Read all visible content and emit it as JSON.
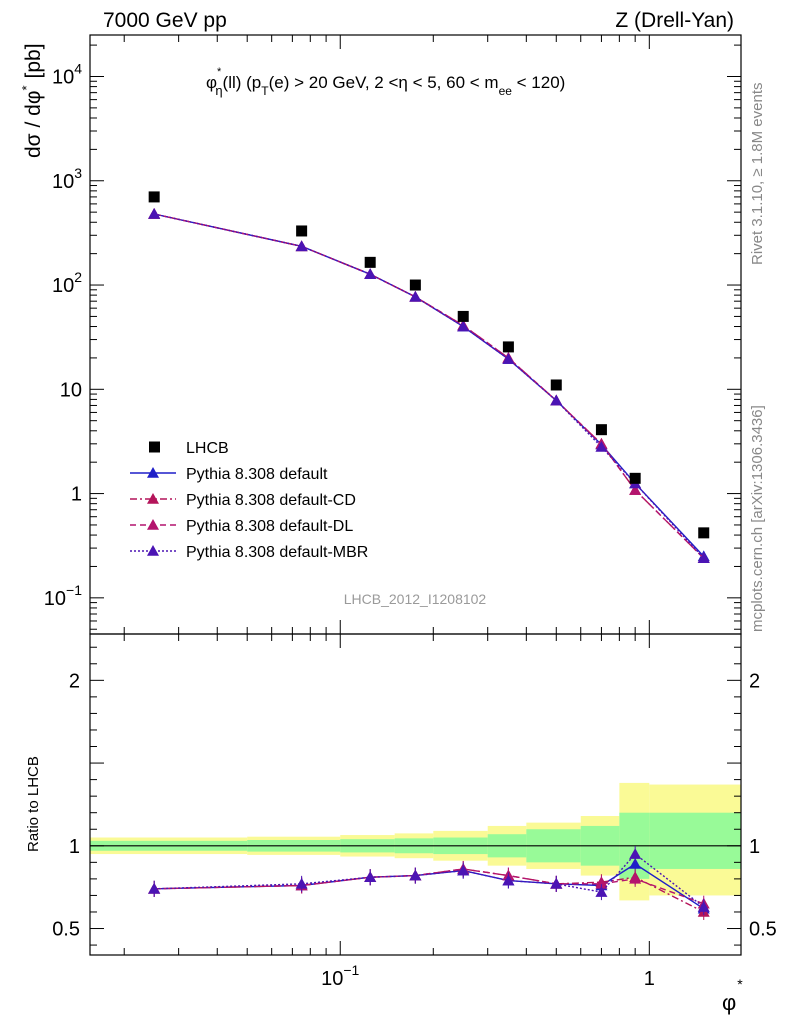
{
  "header": {
    "energy_label": "7000 GeV pp",
    "process_label": "Z (Drell-Yan)",
    "analysis_id": "LHCB_2012_I1208102",
    "side_label_top": "Rivet 3.1.10, ≥ 1.8M events",
    "side_label_bottom": "mcplots.cern.ch [arXiv:1306.3436]"
  },
  "colors": {
    "data": "#000000",
    "default": "#1f1fc8",
    "default_cd": "#b4145a",
    "default_dl": "#b4146e",
    "default_mbr": "#4b14b4",
    "band_inner": "#98fa98",
    "band_outer": "#fafa96"
  },
  "chart_data": [
    {
      "type": "scatter",
      "panel": "main",
      "title": "φ*η(ll) (pT(e) > 20 GeV, 2 <η < 5, 60 < mee < 120)",
      "title_parts": {
        "phi": "φ",
        "star": "*",
        "eta_sub": "η",
        "ll": "(ll) (p",
        "T_sub": "T",
        "rest1": "(e) > 20 GeV, 2 <η < 5, 60 < m",
        "ee_sub": "ee",
        "rest2": " < 120)"
      },
      "ylabel": "dσ / dφ* [pb]",
      "ylabel_parts": {
        "main": "dσ / dφ",
        "star": "*",
        "unit": "[pb]"
      },
      "xscale": "log",
      "yscale": "log",
      "xlim": [
        0.0155,
        1.98
      ],
      "ylim": [
        0.045,
        25000
      ],
      "yticks": [
        {
          "value": 0.1,
          "base": "10",
          "exp": "−1"
        },
        {
          "value": 1,
          "base": "1",
          "exp": ""
        },
        {
          "value": 10,
          "base": "10",
          "exp": ""
        },
        {
          "value": 100,
          "base": "10",
          "exp": "2"
        },
        {
          "value": 1000,
          "base": "10",
          "exp": "3"
        },
        {
          "value": 10000,
          "base": "10",
          "exp": "4"
        }
      ],
      "x": [
        0.025,
        0.075,
        0.125,
        0.175,
        0.25,
        0.35,
        0.5,
        0.7,
        0.9,
        1.5
      ],
      "data": {
        "name": "LHCB",
        "y": [
          700,
          330,
          165,
          100,
          50,
          25.5,
          11,
          4.1,
          1.4,
          0.42
        ]
      },
      "series": [
        {
          "name": "Pythia 8.308 default",
          "style": "solid",
          "color_key": "default",
          "y": [
            480,
            235,
            127,
            77,
            40,
            19.5,
            7.8,
            2.95,
            1.25,
            0.25
          ]
        },
        {
          "name": "Pythia 8.308 default-CD",
          "style": "dashdot",
          "color_key": "default_cd",
          "y": [
            480,
            235,
            127,
            77,
            41,
            20,
            7.8,
            3.0,
            1.08,
            0.24
          ]
        },
        {
          "name": "Pythia 8.308 default-DL",
          "style": "dashed",
          "color_key": "default_dl",
          "y": [
            480,
            235,
            127,
            77,
            41,
            20,
            7.8,
            3.0,
            1.08,
            0.24
          ]
        },
        {
          "name": "Pythia 8.308 default-MBR",
          "style": "dotted",
          "color_key": "default_mbr",
          "y": [
            480,
            235,
            127,
            77,
            40,
            19.5,
            7.8,
            2.8,
            1.25,
            0.24
          ]
        }
      ],
      "legend_position": "lower-left"
    },
    {
      "type": "line",
      "panel": "ratio",
      "ylabel": "Ratio to LHCB",
      "xlabel": "φ*",
      "xlabel_parts": {
        "main": "φ",
        "star": "*"
      },
      "xscale": "log",
      "xlim": [
        0.0155,
        1.98
      ],
      "ylim": [
        0.34,
        2.28
      ],
      "yticks": [
        0.5,
        1,
        2
      ],
      "ytick_labels": [
        "0.5",
        "1",
        "2"
      ],
      "xticks": [
        {
          "value": 0.1,
          "base": "10",
          "exp": "−1"
        },
        {
          "value": 1,
          "base": "1",
          "exp": ""
        }
      ],
      "band_edges": [
        0.0155,
        0.05,
        0.1,
        0.15,
        0.2,
        0.3,
        0.4,
        0.6,
        0.8,
        1.0,
        1.98
      ],
      "band_inner": [
        [
          0.97,
          1.03
        ],
        [
          0.965,
          1.035
        ],
        [
          0.96,
          1.04
        ],
        [
          0.955,
          1.045
        ],
        [
          0.95,
          1.05
        ],
        [
          0.93,
          1.07
        ],
        [
          0.9,
          1.1
        ],
        [
          0.88,
          1.12
        ],
        [
          0.8,
          1.2
        ],
        [
          0.86,
          1.2
        ]
      ],
      "band_outer": [
        [
          0.95,
          1.05
        ],
        [
          0.945,
          1.055
        ],
        [
          0.935,
          1.065
        ],
        [
          0.925,
          1.075
        ],
        [
          0.91,
          1.09
        ],
        [
          0.88,
          1.12
        ],
        [
          0.86,
          1.14
        ],
        [
          0.82,
          1.18
        ],
        [
          0.67,
          1.38
        ],
        [
          0.7,
          1.37
        ]
      ],
      "x": [
        0.025,
        0.075,
        0.125,
        0.175,
        0.25,
        0.35,
        0.5,
        0.7,
        0.9,
        1.5
      ],
      "series": [
        {
          "name": "Pythia 8.308 default",
          "style": "solid",
          "color_key": "default",
          "y": [
            0.74,
            0.76,
            0.81,
            0.82,
            0.85,
            0.79,
            0.77,
            0.76,
            0.89,
            0.62
          ]
        },
        {
          "name": "Pythia 8.308 default-CD",
          "style": "dashdot",
          "color_key": "default_cd",
          "y": [
            0.74,
            0.76,
            0.81,
            0.82,
            0.86,
            0.82,
            0.77,
            0.78,
            0.81,
            0.6
          ]
        },
        {
          "name": "Pythia 8.308 default-DL",
          "style": "dashed",
          "color_key": "default_dl",
          "y": [
            0.74,
            0.76,
            0.81,
            0.82,
            0.86,
            0.82,
            0.77,
            0.77,
            0.8,
            0.65
          ]
        },
        {
          "name": "Pythia 8.308 default-MBR",
          "style": "dotted",
          "color_key": "default_mbr",
          "y": [
            0.74,
            0.77,
            0.81,
            0.82,
            0.85,
            0.79,
            0.77,
            0.72,
            0.95,
            0.63
          ]
        }
      ]
    }
  ]
}
